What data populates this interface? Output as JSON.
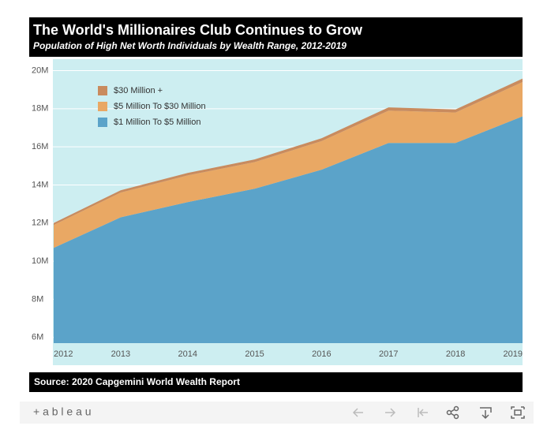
{
  "chart_data": {
    "type": "stacked_area",
    "title": "The World's Millionaires Club Continues to Grow",
    "subtitle": "Population of High Net Worth Individuals by Wealth Range, 2012-2019",
    "source": "Source: 2020 Capgemini World Wealth Report",
    "categories": [
      "2012",
      "2013",
      "2014",
      "2015",
      "2016",
      "2017",
      "2018",
      "2019"
    ],
    "series": [
      {
        "name": "$30 Million +",
        "color": "#c98b5e",
        "values": [
          0.1,
          0.12,
          0.13,
          0.14,
          0.15,
          0.17,
          0.16,
          0.18
        ]
      },
      {
        "name": "$5 Million To $30 Million",
        "color": "#e9a864",
        "values": [
          1.2,
          1.3,
          1.4,
          1.4,
          1.5,
          1.7,
          1.6,
          1.8
        ]
      },
      {
        "name": "$1 Million To $5 Million",
        "color": "#5ba3c9",
        "values": [
          10.7,
          12.3,
          13.1,
          13.8,
          14.8,
          16.2,
          16.2,
          17.6
        ]
      }
    ],
    "ylim": [
      5.7,
      20.6
    ],
    "yticks": [
      {
        "value": 6,
        "label": "6M"
      },
      {
        "value": 8,
        "label": "8M"
      },
      {
        "value": 10,
        "label": "10M"
      },
      {
        "value": 12,
        "label": "12M"
      },
      {
        "value": 14,
        "label": "14M"
      },
      {
        "value": 16,
        "label": "16M"
      },
      {
        "value": 18,
        "label": "18M"
      },
      {
        "value": 20,
        "label": "20M"
      }
    ],
    "grid": true,
    "legend": "upper left"
  },
  "toolbar": {
    "logo": "+ a b l e a u"
  }
}
